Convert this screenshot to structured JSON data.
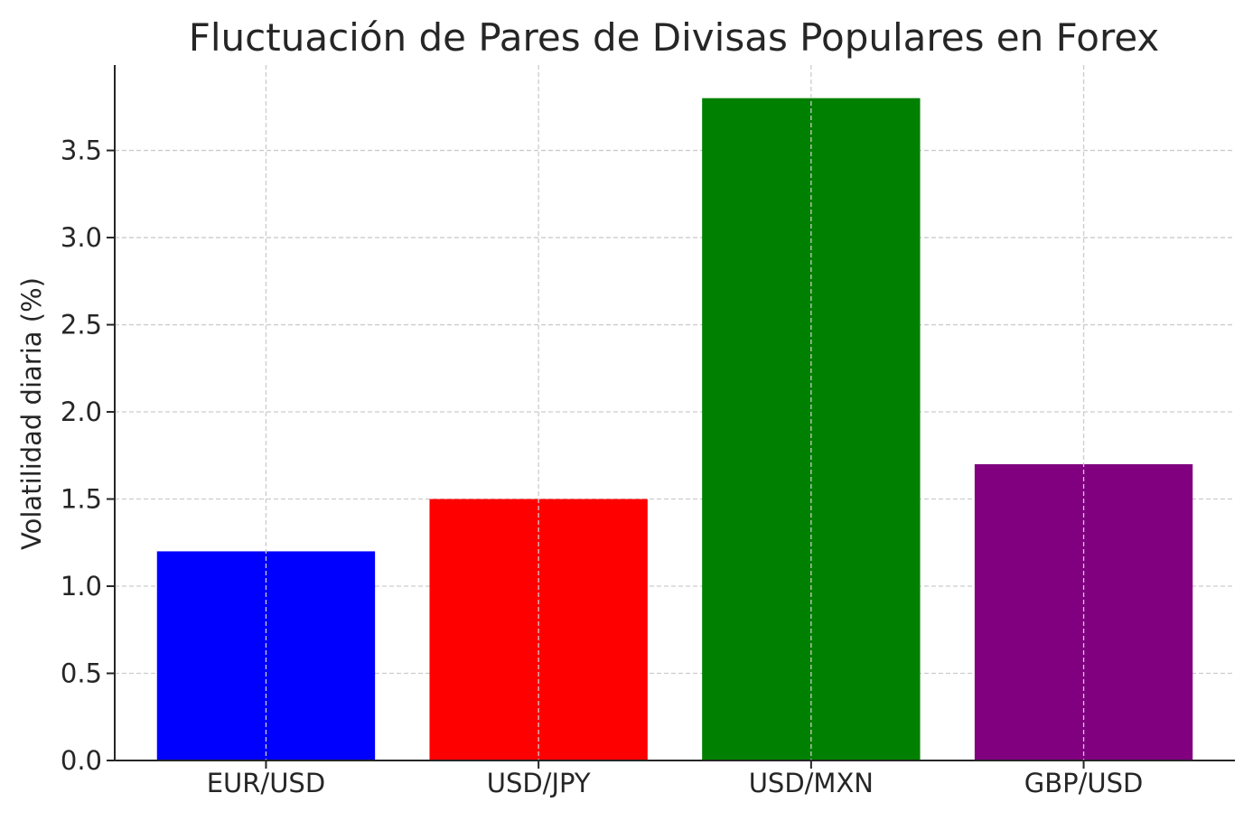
{
  "chart_data": {
    "type": "bar",
    "title": "Fluctuación de Pares de Divisas Populares en Forex",
    "xlabel": "",
    "ylabel": "Volatilidad diaria (%)",
    "categories": [
      "EUR/USD",
      "USD/JPY",
      "USD/MXN",
      "GBP/USD"
    ],
    "values": [
      1.2,
      1.5,
      3.8,
      1.7
    ],
    "colors": [
      "#0000ff",
      "#ff0000",
      "#008000",
      "#800080"
    ],
    "ylim": [
      0,
      3.99
    ],
    "yticks": [
      "0.0",
      "0.5",
      "1.0",
      "1.5",
      "2.0",
      "2.5",
      "3.0",
      "3.5"
    ],
    "grid": true,
    "legend": "none"
  }
}
